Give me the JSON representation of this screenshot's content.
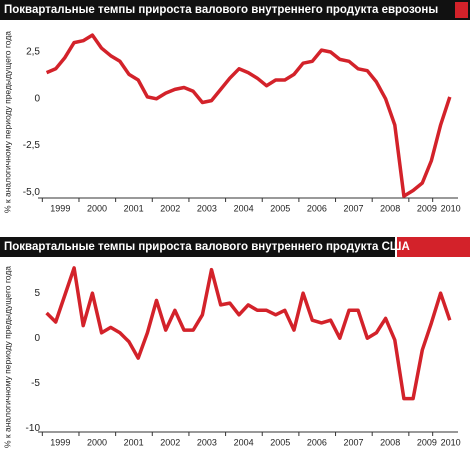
{
  "chart_data": [
    {
      "type": "line",
      "title": "Поквартальные темпы прироста валового внутреннего продукта еврозоны",
      "y_label": "% к аналогичному периоду предыдущего года",
      "x": [
        1999.125,
        1999.375,
        1999.625,
        1999.875,
        2000.125,
        2000.375,
        2000.625,
        2000.875,
        2001.125,
        2001.375,
        2001.625,
        2001.875,
        2002.125,
        2002.375,
        2002.625,
        2002.875,
        2003.125,
        2003.375,
        2003.625,
        2003.875,
        2004.125,
        2004.375,
        2004.625,
        2004.875,
        2005.125,
        2005.375,
        2005.625,
        2005.875,
        2006.125,
        2006.375,
        2006.625,
        2006.875,
        2007.125,
        2007.375,
        2007.625,
        2007.875,
        2008.125,
        2008.375,
        2008.625,
        2008.875,
        2009.125,
        2009.375,
        2009.625,
        2009.875,
        2010.125
      ],
      "values": [
        1.4,
        1.6,
        2.2,
        3.0,
        3.1,
        3.4,
        2.7,
        2.3,
        2.0,
        1.3,
        1.0,
        0.1,
        0.0,
        0.3,
        0.5,
        0.6,
        0.4,
        -0.2,
        -0.1,
        0.5,
        1.1,
        1.6,
        1.4,
        1.1,
        0.7,
        1.0,
        1.0,
        1.3,
        1.9,
        2.0,
        2.6,
        2.5,
        2.1,
        2.0,
        1.6,
        1.5,
        0.9,
        0.0,
        -1.4,
        -5.2,
        -4.9,
        -4.5,
        -3.3,
        -1.4,
        0.1
      ],
      "color": "#d3222a",
      "xlim": [
        1999,
        2010.35
      ],
      "xticks": [
        {
          "value": 1999.5,
          "label": "1999"
        },
        {
          "value": 2000.5,
          "label": "2000"
        },
        {
          "value": 2001.5,
          "label": "2001"
        },
        {
          "value": 2002.5,
          "label": "2002"
        },
        {
          "value": 2003.5,
          "label": "2003"
        },
        {
          "value": 2004.5,
          "label": "2004"
        },
        {
          "value": 2005.5,
          "label": "2005"
        },
        {
          "value": 2006.5,
          "label": "2006"
        },
        {
          "value": 2007.5,
          "label": "2007"
        },
        {
          "value": 2008.5,
          "label": "2008"
        },
        {
          "value": 2009.5,
          "label": "2009"
        },
        {
          "value": 2010.15,
          "label": "2010"
        }
      ],
      "ylim": [
        -5.3,
        4.1
      ],
      "yticks": [
        {
          "value": 2.5,
          "label": "2,5"
        },
        0,
        {
          "value": -2.5,
          "label": "-2,5"
        },
        {
          "value": -5,
          "label": "-5,0"
        }
      ]
    },
    {
      "type": "line",
      "title": "Поквартальные темпы прироста валового внутреннего продукта США",
      "y_label": "% к аналогичному периоду предыдущего года",
      "x": [
        1999.125,
        1999.375,
        1999.625,
        1999.875,
        2000.125,
        2000.375,
        2000.625,
        2000.875,
        2001.125,
        2001.375,
        2001.625,
        2001.875,
        2002.125,
        2002.375,
        2002.625,
        2002.875,
        2003.125,
        2003.375,
        2003.625,
        2003.875,
        2004.125,
        2004.375,
        2004.625,
        2004.875,
        2005.125,
        2005.375,
        2005.625,
        2005.875,
        2006.125,
        2006.375,
        2006.625,
        2006.875,
        2007.125,
        2007.375,
        2007.625,
        2007.875,
        2008.125,
        2008.375,
        2008.625,
        2008.875,
        2009.125,
        2009.375,
        2009.625,
        2009.875,
        2010.125
      ],
      "values": [
        2.8,
        1.8,
        4.8,
        7.8,
        1.4,
        5.0,
        0.6,
        1.2,
        0.6,
        -0.4,
        -2.2,
        0.6,
        4.2,
        0.9,
        3.1,
        0.9,
        0.9,
        2.6,
        7.6,
        3.7,
        3.9,
        2.6,
        3.7,
        3.1,
        3.1,
        2.6,
        3.1,
        0.9,
        5.0,
        2.0,
        1.7,
        2.0,
        0.0,
        3.1,
        3.1,
        0.0,
        0.6,
        2.2,
        -0.2,
        -6.7,
        -6.7,
        -1.3,
        1.7,
        5.0,
        2.0
      ],
      "color": "#d3222a",
      "xlim": [
        1999,
        2010.35
      ],
      "xticks": [
        {
          "value": 1999.5,
          "label": "1999"
        },
        {
          "value": 2000.5,
          "label": "2000"
        },
        {
          "value": 2001.5,
          "label": "2001"
        },
        {
          "value": 2002.5,
          "label": "2002"
        },
        {
          "value": 2003.5,
          "label": "2003"
        },
        {
          "value": 2004.5,
          "label": "2004"
        },
        {
          "value": 2005.5,
          "label": "2005"
        },
        {
          "value": 2006.5,
          "label": "2006"
        },
        {
          "value": 2007.5,
          "label": "2007"
        },
        {
          "value": 2008.5,
          "label": "2008"
        },
        {
          "value": 2009.5,
          "label": "2009"
        },
        {
          "value": 2010.15,
          "label": "2010"
        }
      ],
      "ylim": [
        -10.4,
        8.9
      ],
      "yticks": [
        5,
        0,
        -5,
        -10
      ]
    }
  ]
}
